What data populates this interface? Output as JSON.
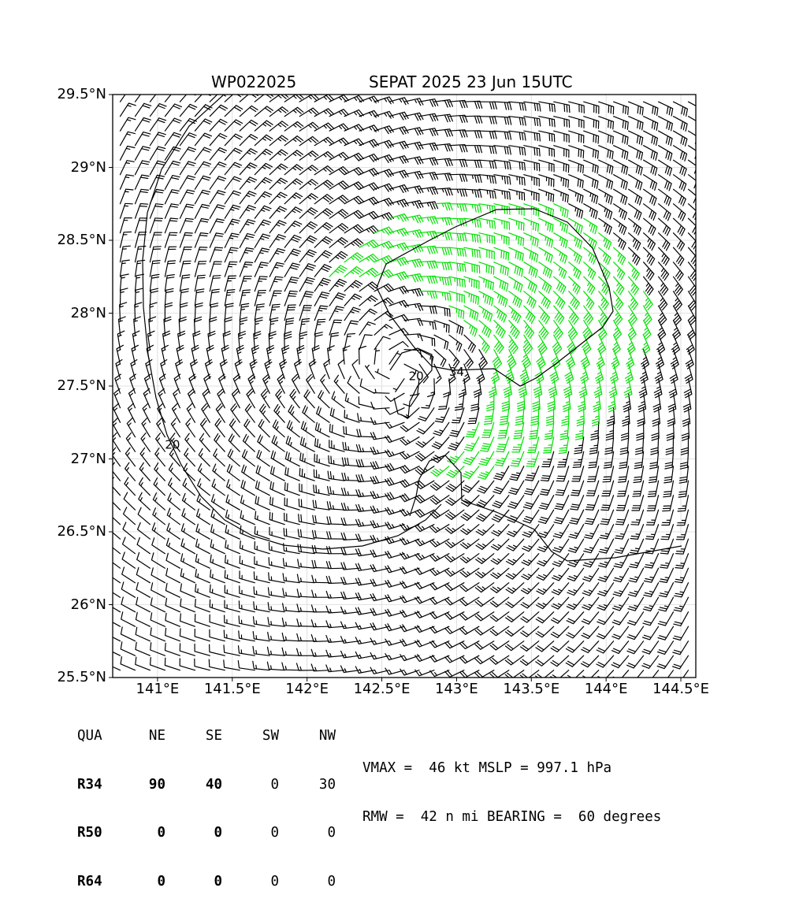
{
  "title": {
    "storm_id": "WP022025",
    "name_time": "SEPAT 2025 23 Jun 15UTC"
  },
  "colors": {
    "below34": "#000000",
    "gale34": "#00e000",
    "storm50": "#e8b800",
    "frame": "#000000"
  },
  "chart_data": {
    "type": "wind-barb field",
    "xlim": [
      140.7,
      144.6
    ],
    "ylim": [
      25.5,
      29.5
    ],
    "x_ticks": [
      141.0,
      141.5,
      142.0,
      142.5,
      143.0,
      143.5,
      144.0,
      144.5
    ],
    "x_tick_labels": [
      "141°E",
      "141.5°E",
      "142°E",
      "142.5°E",
      "143°E",
      "143.5°E",
      "144°E",
      "144.5°E"
    ],
    "y_ticks": [
      25.5,
      26.0,
      26.5,
      27.0,
      27.5,
      28.0,
      28.5,
      29.0,
      29.5
    ],
    "y_tick_labels": [
      "25.5°N",
      "26°N",
      "26.5°N",
      "27°N",
      "27.5°N",
      "28°N",
      "28.5°N",
      "29°N",
      "29.5°N"
    ],
    "grid": true,
    "center": {
      "lon": 142.6,
      "lat": 27.6
    },
    "barb_spacing_deg": 0.1,
    "wind_model": {
      "vmax_kt": 46,
      "rmw_nmi": 42,
      "asym_bearing_deg": 60,
      "asym_kt": 10,
      "decay_exp": 0.5
    },
    "contours": [
      {
        "level": "20",
        "label_lon": 142.73,
        "label_lat": 27.54
      },
      {
        "level": "20",
        "label_lon": 141.1,
        "label_lat": 27.07
      },
      {
        "level": "34",
        "label_lon": 143.0,
        "label_lat": 27.57
      }
    ]
  },
  "radii": {
    "header": [
      "QUA",
      "NE",
      "SE",
      "SW",
      "NW"
    ],
    "rows": [
      {
        "label": "R34",
        "values": [
          "90",
          "40",
          "0",
          "30"
        ]
      },
      {
        "label": "R50",
        "values": [
          "0",
          "0",
          "0",
          "0"
        ]
      },
      {
        "label": "R64",
        "values": [
          "0",
          "0",
          "0",
          "0"
        ]
      }
    ]
  },
  "summary": {
    "line1": "VMAX =  46 kt MSLP = 997.1 hPa",
    "line2": "RMW =  42 n mi BEARING =  60 degrees"
  }
}
